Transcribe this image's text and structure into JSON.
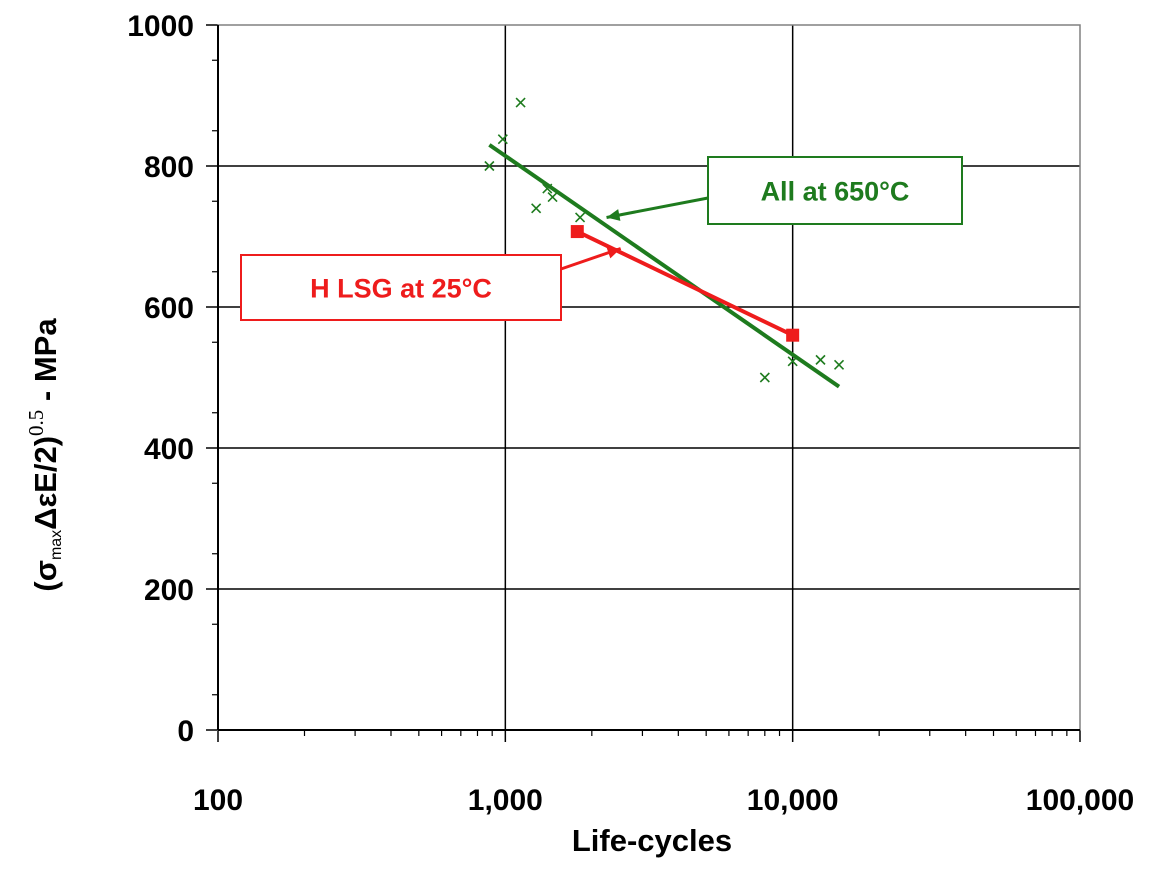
{
  "chart_data": {
    "type": "line",
    "title": "",
    "xlabel": "Life-cycles",
    "ylabel": {
      "prefix": "(σ",
      "sub": "max",
      "mid": "ΔεE/2)",
      "sup": "0.5",
      "suffix": " - MPa"
    },
    "x_scale": "log",
    "xlim": [
      100,
      100000
    ],
    "ylim": [
      0,
      1000
    ],
    "x_ticks": [
      {
        "value": 100,
        "label": "100"
      },
      {
        "value": 1000,
        "label": "1,000"
      },
      {
        "value": 10000,
        "label": "10,000"
      },
      {
        "value": 100000,
        "label": "100,000"
      }
    ],
    "y_ticks": [
      {
        "value": 0,
        "label": "0"
      },
      {
        "value": 200,
        "label": "200"
      },
      {
        "value": 400,
        "label": "400"
      },
      {
        "value": 600,
        "label": "600"
      },
      {
        "value": 800,
        "label": "800"
      },
      {
        "value": 1000,
        "label": "1000"
      }
    ],
    "grid": true,
    "series": [
      {
        "name": "All at 650°C",
        "color": "#1e7b1e",
        "marker": "x",
        "points": [
          [
            880,
            800
          ],
          [
            980,
            838
          ],
          [
            1130,
            890
          ],
          [
            1280,
            740
          ],
          [
            1400,
            768
          ],
          [
            1460,
            756
          ],
          [
            1820,
            727
          ],
          [
            8000,
            500
          ],
          [
            10000,
            523
          ],
          [
            12500,
            525
          ],
          [
            14500,
            518
          ]
        ],
        "fit_line": [
          [
            880,
            830
          ],
          [
            14500,
            487
          ]
        ]
      },
      {
        "name": "H LSG at 25°C",
        "color": "#ee1c1c",
        "marker": "square",
        "points": [
          [
            1780,
            707
          ],
          [
            10000,
            560
          ]
        ],
        "fit_line": [
          [
            1780,
            707
          ],
          [
            10000,
            560
          ]
        ]
      }
    ],
    "annotations": [
      {
        "text": "All at 650°C",
        "color": "#1e7b1e",
        "box": "right",
        "arrow_to": [
          2250,
          727
        ]
      },
      {
        "text": "H LSG at 25°C",
        "color": "#ee1c1c",
        "box": "left",
        "arrow_to": [
          2520,
          683
        ]
      }
    ]
  }
}
